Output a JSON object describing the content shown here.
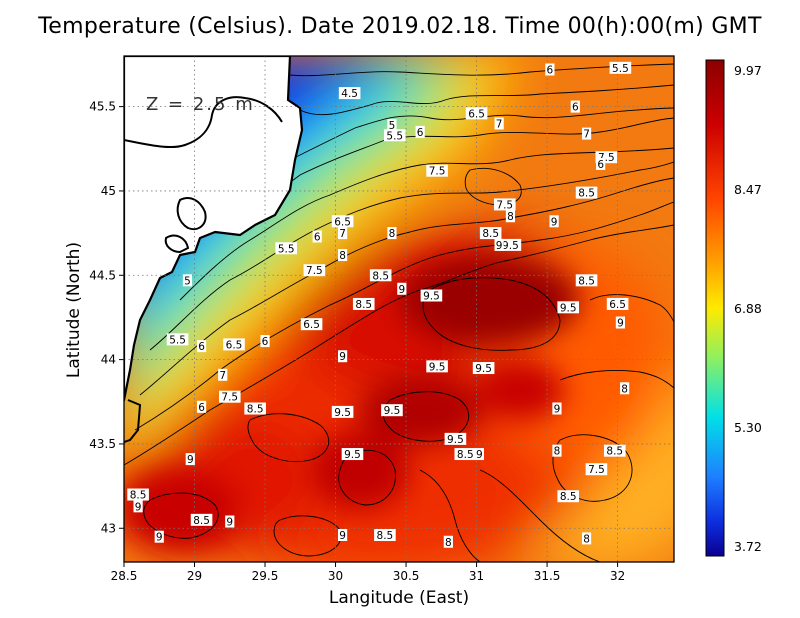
{
  "title": "Temperature (Celsius). Date 2019.02.18. Time 00(h):00(m) GMT",
  "depth_label": "Z = 2.5 m",
  "x_axis": {
    "label": "Langitude (East)",
    "min": 28.5,
    "max": 32.4,
    "ticks": [
      28.5,
      29,
      29.5,
      30,
      30.5,
      31,
      31.5,
      32
    ]
  },
  "y_axis": {
    "label": "Latitude (North)",
    "min": 42.8,
    "max": 45.8,
    "ticks": [
      43,
      43.5,
      44,
      44.5,
      45,
      45.5
    ]
  },
  "colorbar": {
    "ticks": [
      "9.97",
      "8.47",
      "6.88",
      "5.30",
      "3.72"
    ]
  },
  "colors": {
    "land": "#ffffff",
    "coast": "#000000",
    "high": "#8b0000",
    "low": "#0000a0"
  },
  "contour_labels": [
    {
      "t": "6",
      "lon": 31.52,
      "lat": 45.72
    },
    {
      "t": "5.5",
      "lon": 32.02,
      "lat": 45.73
    },
    {
      "t": "4.5",
      "lon": 30.1,
      "lat": 45.58
    },
    {
      "t": "6.5",
      "lon": 31.0,
      "lat": 45.46
    },
    {
      "t": "6",
      "lon": 31.7,
      "lat": 45.5
    },
    {
      "t": "7",
      "lon": 31.16,
      "lat": 45.4
    },
    {
      "t": "5",
      "lon": 30.4,
      "lat": 45.39
    },
    {
      "t": "6",
      "lon": 30.6,
      "lat": 45.35
    },
    {
      "t": "5.5",
      "lon": 30.42,
      "lat": 45.33
    },
    {
      "t": "7",
      "lon": 31.78,
      "lat": 45.34
    },
    {
      "t": "7.5",
      "lon": 31.92,
      "lat": 45.2
    },
    {
      "t": "6",
      "lon": 31.88,
      "lat": 45.16
    },
    {
      "t": "7.5",
      "lon": 30.72,
      "lat": 45.12
    },
    {
      "t": "8.5",
      "lon": 31.78,
      "lat": 44.99
    },
    {
      "t": "7.5",
      "lon": 31.2,
      "lat": 44.92
    },
    {
      "t": "8",
      "lon": 31.24,
      "lat": 44.85
    },
    {
      "t": "6.5",
      "lon": 30.05,
      "lat": 44.82
    },
    {
      "t": "7",
      "lon": 30.05,
      "lat": 44.75
    },
    {
      "t": "8",
      "lon": 30.4,
      "lat": 44.75
    },
    {
      "t": "8.5",
      "lon": 31.1,
      "lat": 44.75
    },
    {
      "t": "9",
      "lon": 31.55,
      "lat": 44.82
    },
    {
      "t": "6",
      "lon": 29.87,
      "lat": 44.73
    },
    {
      "t": "9.5",
      "lon": 31.24,
      "lat": 44.68
    },
    {
      "t": "9",
      "lon": 31.16,
      "lat": 44.68
    },
    {
      "t": "5.5",
      "lon": 29.65,
      "lat": 44.66
    },
    {
      "t": "8",
      "lon": 30.05,
      "lat": 44.62
    },
    {
      "t": "7.5",
      "lon": 29.85,
      "lat": 44.53
    },
    {
      "t": "8.5",
      "lon": 30.32,
      "lat": 44.5
    },
    {
      "t": "5",
      "lon": 28.95,
      "lat": 44.47
    },
    {
      "t": "8.5",
      "lon": 31.78,
      "lat": 44.47
    },
    {
      "t": "9",
      "lon": 30.47,
      "lat": 44.42
    },
    {
      "t": "9.5",
      "lon": 30.68,
      "lat": 44.38
    },
    {
      "t": "8.5",
      "lon": 30.2,
      "lat": 44.33
    },
    {
      "t": "6.5",
      "lon": 32.0,
      "lat": 44.33
    },
    {
      "t": "9.5",
      "lon": 31.65,
      "lat": 44.31
    },
    {
      "t": "9",
      "lon": 32.02,
      "lat": 44.22
    },
    {
      "t": "6.5",
      "lon": 29.83,
      "lat": 44.21
    },
    {
      "t": "5.5",
      "lon": 28.88,
      "lat": 44.12
    },
    {
      "t": "6",
      "lon": 29.05,
      "lat": 44.08
    },
    {
      "t": "6.5",
      "lon": 29.28,
      "lat": 44.09
    },
    {
      "t": "6",
      "lon": 29.5,
      "lat": 44.11
    },
    {
      "t": "9",
      "lon": 30.05,
      "lat": 44.02
    },
    {
      "t": "9.5",
      "lon": 30.72,
      "lat": 43.96
    },
    {
      "t": "9.5",
      "lon": 31.05,
      "lat": 43.95
    },
    {
      "t": "7",
      "lon": 29.2,
      "lat": 43.91
    },
    {
      "t": "8",
      "lon": 32.05,
      "lat": 43.83
    },
    {
      "t": "7.5",
      "lon": 29.25,
      "lat": 43.78
    },
    {
      "t": "6",
      "lon": 29.05,
      "lat": 43.72
    },
    {
      "t": "8.5",
      "lon": 29.43,
      "lat": 43.71
    },
    {
      "t": "9.5",
      "lon": 30.05,
      "lat": 43.69
    },
    {
      "t": "9.5",
      "lon": 30.4,
      "lat": 43.7
    },
    {
      "t": "9",
      "lon": 31.57,
      "lat": 43.71
    },
    {
      "t": "9.5",
      "lon": 30.85,
      "lat": 43.53
    },
    {
      "t": "8",
      "lon": 31.57,
      "lat": 43.46
    },
    {
      "t": "8.5",
      "lon": 31.98,
      "lat": 43.46
    },
    {
      "t": "9.5",
      "lon": 30.12,
      "lat": 43.44
    },
    {
      "t": "8.5",
      "lon": 30.92,
      "lat": 43.44
    },
    {
      "t": "9",
      "lon": 31.02,
      "lat": 43.44
    },
    {
      "t": "9",
      "lon": 28.97,
      "lat": 43.41
    },
    {
      "t": "7.5",
      "lon": 31.85,
      "lat": 43.35
    },
    {
      "t": "8.5",
      "lon": 28.6,
      "lat": 43.2
    },
    {
      "t": "9",
      "lon": 28.6,
      "lat": 43.13
    },
    {
      "t": "8.5",
      "lon": 31.65,
      "lat": 43.19
    },
    {
      "t": "8.5",
      "lon": 29.05,
      "lat": 43.05
    },
    {
      "t": "9",
      "lon": 29.25,
      "lat": 43.04
    },
    {
      "t": "9",
      "lon": 30.05,
      "lat": 42.96
    },
    {
      "t": "8.5",
      "lon": 30.35,
      "lat": 42.96
    },
    {
      "t": "9",
      "lon": 28.75,
      "lat": 42.95
    },
    {
      "t": "8",
      "lon": 30.8,
      "lat": 42.92
    },
    {
      "t": "8",
      "lon": 31.78,
      "lat": 42.94
    }
  ]
}
